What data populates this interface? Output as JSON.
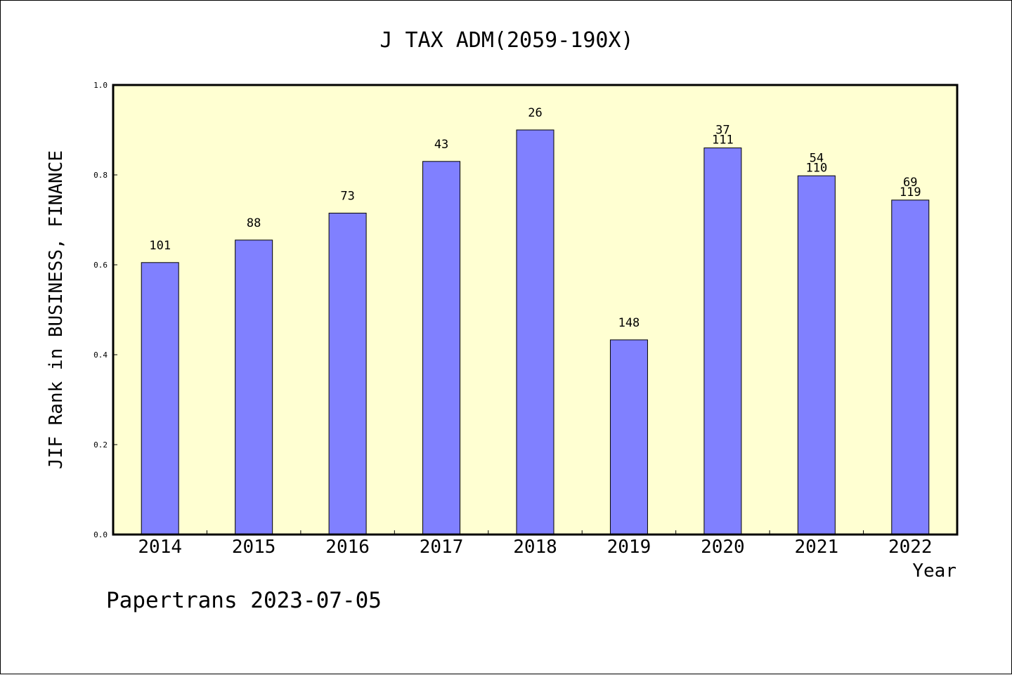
{
  "chart_data": {
    "type": "bar",
    "title": "J TAX ADM(2059-190X)",
    "xlabel": "Year",
    "ylabel": "JIF Rank in BUSINESS, FINANCE",
    "ylim": [
      0,
      1.0
    ],
    "yticks": [
      "0.0",
      "0.2",
      "0.4",
      "0.6",
      "0.8",
      "1.0"
    ],
    "categories": [
      "2014",
      "2015",
      "2016",
      "2017",
      "2018",
      "2019",
      "2020",
      "2021",
      "2022"
    ],
    "values": [
      0.605,
      0.655,
      0.715,
      0.83,
      0.9,
      0.433,
      0.86,
      0.798,
      0.744
    ],
    "bar_labels": [
      [
        "101"
      ],
      [
        "88"
      ],
      [
        "73"
      ],
      [
        "43"
      ],
      [
        "26"
      ],
      [
        "148"
      ],
      [
        "37",
        "111"
      ],
      [
        "54",
        "110"
      ],
      [
        "69",
        "119"
      ]
    ],
    "grid": false,
    "colors": {
      "plot_bg": "#ffffd2",
      "bar": "#8080ff",
      "bar_edge": "#000000"
    }
  },
  "footer": {
    "credit": "Papertrans 2023-07-05"
  }
}
